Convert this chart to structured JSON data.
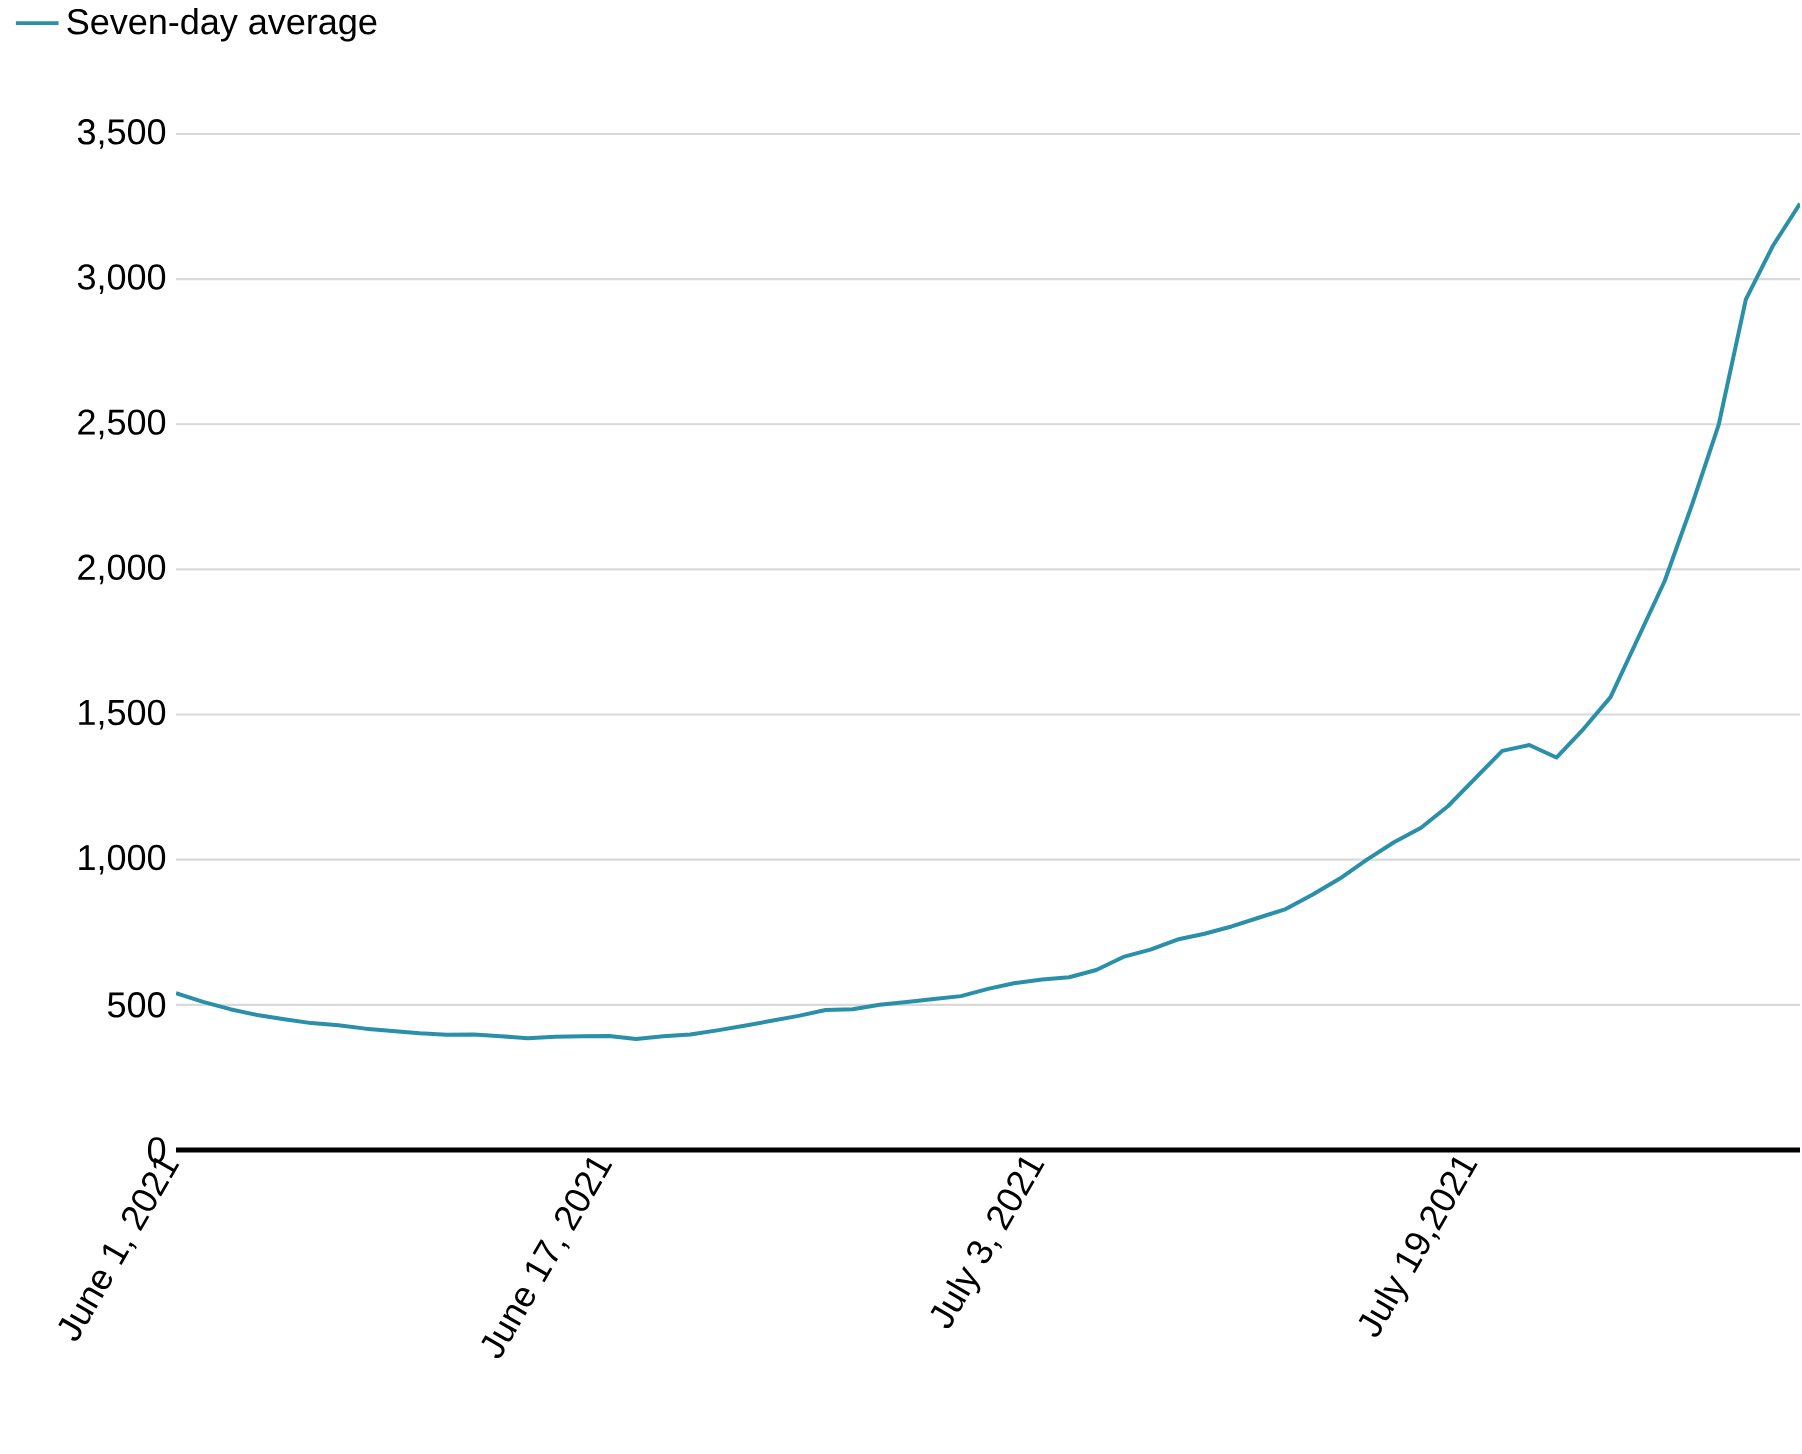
{
  "chart_data": {
    "type": "line",
    "x": [
      "2021-06-01",
      "2021-06-02",
      "2021-06-03",
      "2021-06-04",
      "2021-06-05",
      "2021-06-06",
      "2021-06-07",
      "2021-06-08",
      "2021-06-09",
      "2021-06-10",
      "2021-06-11",
      "2021-06-12",
      "2021-06-13",
      "2021-06-14",
      "2021-06-15",
      "2021-06-16",
      "2021-06-17",
      "2021-06-18",
      "2021-06-19",
      "2021-06-20",
      "2021-06-21",
      "2021-06-22",
      "2021-06-23",
      "2021-06-24",
      "2021-06-25",
      "2021-06-26",
      "2021-06-27",
      "2021-06-28",
      "2021-06-29",
      "2021-06-30",
      "2021-07-01",
      "2021-07-02",
      "2021-07-03",
      "2021-07-04",
      "2021-07-05",
      "2021-07-06",
      "2021-07-07",
      "2021-07-08",
      "2021-07-09",
      "2021-07-10",
      "2021-07-11",
      "2021-07-12",
      "2021-07-13",
      "2021-07-14",
      "2021-07-15",
      "2021-07-16",
      "2021-07-17",
      "2021-07-18",
      "2021-07-19",
      "2021-07-20",
      "2021-07-21",
      "2021-07-22",
      "2021-07-23",
      "2021-07-24",
      "2021-07-25",
      "2021-07-26",
      "2021-07-27",
      "2021-07-28",
      "2021-07-29",
      "2021-07-30",
      "2021-07-31"
    ],
    "series": [
      {
        "name": "Seven-day average",
        "color": "#2a8fa8",
        "values": [
          540,
          510,
          485,
          465,
          450,
          437,
          430,
          418,
          410,
          402,
          397,
          398,
          392,
          385,
          390,
          392,
          393,
          382,
          392,
          398,
          412,
          428,
          445,
          462,
          482,
          485,
          500,
          510,
          520,
          530,
          555,
          575,
          587,
          595,
          620,
          665,
          690,
          725,
          745,
          770,
          800,
          830,
          880,
          935,
          1000,
          1060,
          1110,
          1185,
          1280,
          1375,
          1395,
          1352,
          1450,
          1560,
          1760,
          1960,
          2220,
          2500,
          2930,
          3115,
          3260
        ]
      }
    ],
    "xlim": [
      "2021-06-01",
      "2021-07-31"
    ],
    "xticks": [
      {
        "value": "2021-06-01",
        "label": "June 1, 2021"
      },
      {
        "value": "2021-06-17",
        "label": "June 17, 2021"
      },
      {
        "value": "2021-07-03",
        "label": "July 3, 2021"
      },
      {
        "value": "2021-07-19",
        "label": "July 19,2021"
      }
    ],
    "ylim": [
      0,
      3500
    ],
    "yticks": [
      0,
      {
        "value": 500,
        "label": "500"
      },
      {
        "value": 1000,
        "label": "1,000"
      },
      {
        "value": 1500,
        "label": "1,500"
      },
      {
        "value": 2000,
        "label": "2,000"
      },
      {
        "value": 2500,
        "label": "2,500"
      },
      {
        "value": 3000,
        "label": "3,000"
      },
      {
        "value": 3500,
        "label": "3,500"
      }
    ],
    "grid": "y",
    "legend": "top left"
  }
}
